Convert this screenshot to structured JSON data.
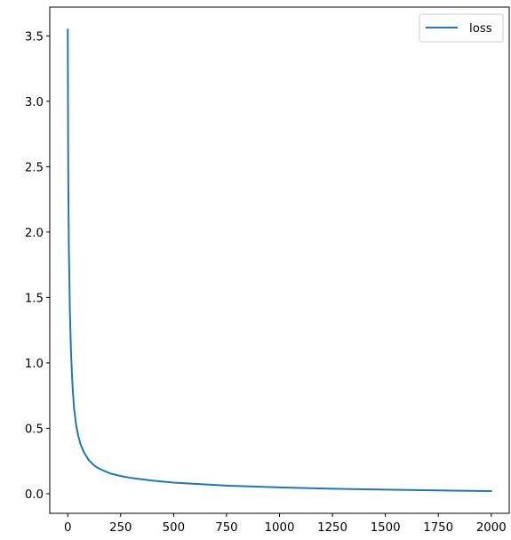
{
  "chart_data": {
    "type": "line",
    "title": "",
    "xlabel": "",
    "ylabel": "",
    "xlim": [
      -85,
      2085
    ],
    "ylim": [
      -0.15,
      3.72
    ],
    "xticks": [
      0,
      250,
      500,
      750,
      1000,
      1250,
      1500,
      1750,
      2000
    ],
    "xtick_labels": [
      "0",
      "250",
      "500",
      "750",
      "1000",
      "1250",
      "1500",
      "1750",
      "2000"
    ],
    "yticks": [
      0.0,
      0.5,
      1.0,
      1.5,
      2.0,
      2.5,
      3.0,
      3.5
    ],
    "ytick_labels": [
      "0.0",
      "0.5",
      "1.0",
      "1.5",
      "2.0",
      "2.5",
      "3.0",
      "3.5"
    ],
    "grid": false,
    "legend": {
      "position": "top-right",
      "entries": [
        "loss"
      ]
    },
    "series": [
      {
        "name": "loss",
        "color": "#1f77b4",
        "x": [
          0,
          2,
          5,
          10,
          15,
          20,
          25,
          30,
          40,
          50,
          60,
          75,
          100,
          125,
          150,
          200,
          250,
          300,
          400,
          500,
          600,
          750,
          1000,
          1250,
          1500,
          1750,
          2000
        ],
        "y": [
          3.55,
          2.5,
          1.9,
          1.4,
          1.1,
          0.9,
          0.76,
          0.65,
          0.52,
          0.44,
          0.38,
          0.32,
          0.255,
          0.215,
          0.19,
          0.155,
          0.135,
          0.12,
          0.1,
          0.085,
          0.075,
          0.062,
          0.048,
          0.038,
          0.031,
          0.025,
          0.02
        ]
      }
    ]
  }
}
